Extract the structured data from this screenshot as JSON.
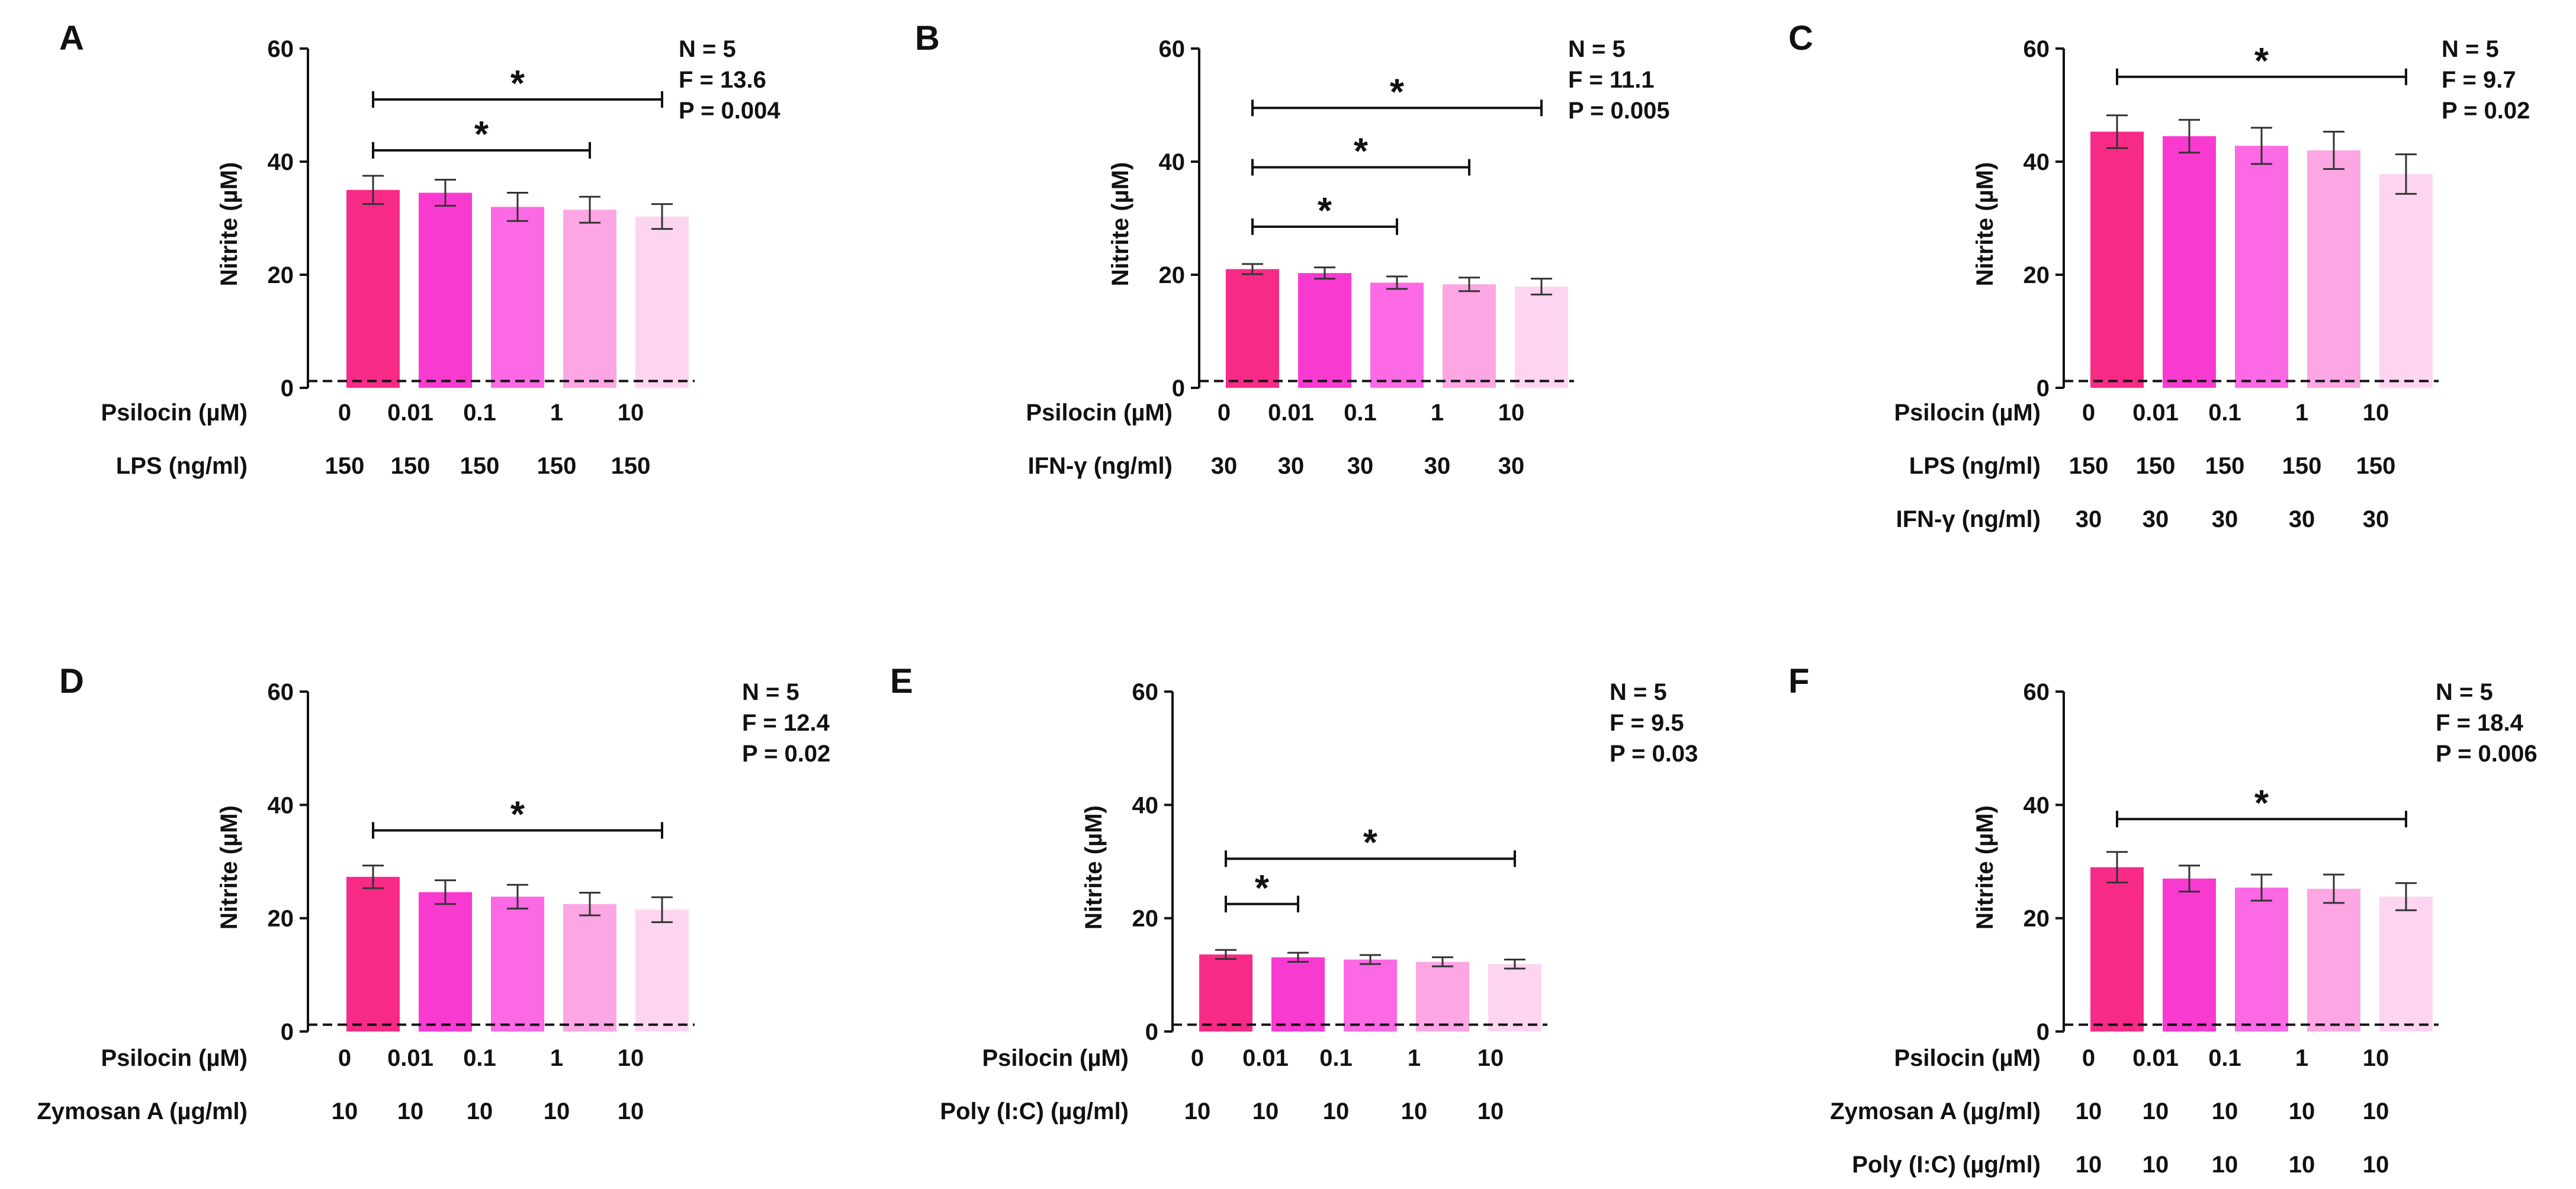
{
  "colors": [
    "#f72b86",
    "#f93ad0",
    "#fb6ae4",
    "#fca6e3",
    "#fdd5f1"
  ],
  "chart_data": [
    {
      "panel": "A",
      "type": "bar",
      "ylabel": "Nitrite (µM)",
      "ylim": [
        0,
        60
      ],
      "yticks": [
        "0",
        "20",
        "40",
        "60"
      ],
      "baseline_dashed": 1.2,
      "rows": [
        {
          "label": "Psilocin (µM)",
          "values": [
            "0",
            "0.01",
            "0.1",
            "1",
            "10"
          ]
        },
        {
          "label": "LPS (ng/ml)",
          "values": [
            "150",
            "150",
            "150",
            "150",
            "150"
          ]
        }
      ],
      "values": [
        35,
        34.5,
        32,
        31.5,
        30.3
      ],
      "errors": [
        2.5,
        2.3,
        2.5,
        2.3,
        2.2
      ],
      "stats": [
        "N = 5",
        "F = 13.6",
        "P = 0.004"
      ],
      "significance": [
        {
          "from": 0,
          "to": 4,
          "y": 51,
          "label": "*"
        },
        {
          "from": 0,
          "to": 3,
          "y": 42,
          "label": "*"
        }
      ]
    },
    {
      "panel": "B",
      "type": "bar",
      "ylabel": "Nitrite (µM)",
      "ylim": [
        0,
        60
      ],
      "yticks": [
        "0",
        "20",
        "40",
        "60"
      ],
      "baseline_dashed": 1.2,
      "rows": [
        {
          "label": "Psilocin (µM)",
          "values": [
            "0",
            "0.01",
            "0.1",
            "1",
            "10"
          ]
        },
        {
          "label": "IFN-γ (ng/ml)",
          "values": [
            "30",
            "30",
            "30",
            "30",
            "30"
          ]
        }
      ],
      "values": [
        21,
        20.3,
        18.6,
        18.3,
        17.9
      ],
      "errors": [
        0.9,
        1.0,
        1.1,
        1.2,
        1.4
      ],
      "stats": [
        "N = 5",
        "F = 11.1",
        "P = 0.005"
      ],
      "significance": [
        {
          "from": 0,
          "to": 4,
          "y": 49.5,
          "label": "*"
        },
        {
          "from": 0,
          "to": 3,
          "y": 39,
          "label": "*"
        },
        {
          "from": 0,
          "to": 2,
          "y": 28.5,
          "label": "*"
        }
      ]
    },
    {
      "panel": "C",
      "type": "bar",
      "ylabel": "Nitrite (µM)",
      "ylim": [
        0,
        60
      ],
      "yticks": [
        "0",
        "20",
        "40",
        "60"
      ],
      "baseline_dashed": 1.2,
      "rows": [
        {
          "label": "Psilocin (µM)",
          "values": [
            "0",
            "0.01",
            "0.1",
            "1",
            "10"
          ]
        },
        {
          "label": "LPS (ng/ml)",
          "values": [
            "150",
            "150",
            "150",
            "150",
            "150"
          ]
        },
        {
          "label": "IFN-γ (ng/ml)",
          "values": [
            "30",
            "30",
            "30",
            "30",
            "30"
          ]
        }
      ],
      "values": [
        45.3,
        44.5,
        42.8,
        42,
        37.8
      ],
      "errors": [
        2.9,
        2.9,
        3.2,
        3.3,
        3.5
      ],
      "stats": [
        "N = 5",
        "F = 9.7",
        "P = 0.02"
      ],
      "significance": [
        {
          "from": 0,
          "to": 4,
          "y": 55,
          "label": "*"
        }
      ]
    },
    {
      "panel": "D",
      "type": "bar",
      "ylabel": "Nitrite (µM)",
      "ylim": [
        0,
        60
      ],
      "yticks": [
        "0",
        "20",
        "40",
        "60"
      ],
      "baseline_dashed": 1.2,
      "rows": [
        {
          "label": "Psilocin (µM)",
          "values": [
            "0",
            "0.01",
            "0.1",
            "1",
            "10"
          ]
        },
        {
          "label": "Zymosan A (µg/ml)",
          "values": [
            "10",
            "10",
            "10",
            "10",
            "10"
          ]
        }
      ],
      "values": [
        27.3,
        24.6,
        23.8,
        22.5,
        21.5
      ],
      "errors": [
        2.0,
        2.1,
        2.1,
        2.0,
        2.2
      ],
      "stats": [
        "N = 5",
        "F = 12.4",
        "P = 0.02"
      ],
      "significance": [
        {
          "from": 0,
          "to": 4,
          "y": 35.5,
          "label": "*"
        }
      ]
    },
    {
      "panel": "E",
      "type": "bar",
      "ylabel": "Nitrite (µM)",
      "ylim": [
        0,
        60
      ],
      "yticks": [
        "0",
        "20",
        "40",
        "60"
      ],
      "baseline_dashed": 1.2,
      "rows": [
        {
          "label": "Psilocin (µM)",
          "values": [
            "0",
            "0.01",
            "0.1",
            "1",
            "10"
          ]
        },
        {
          "label": "Poly (I:C) (µg/ml)",
          "values": [
            "10",
            "10",
            "10",
            "10",
            "10"
          ]
        }
      ],
      "values": [
        13.6,
        13.1,
        12.7,
        12.3,
        11.9
      ],
      "errors": [
        0.8,
        0.8,
        0.8,
        0.8,
        0.8
      ],
      "stats": [
        "N = 5",
        "F = 9.5",
        "P = 0.03"
      ],
      "significance": [
        {
          "from": 0,
          "to": 4,
          "y": 30.5,
          "label": "*"
        },
        {
          "from": 0,
          "to": 1,
          "y": 22.5,
          "label": "*"
        }
      ]
    },
    {
      "panel": "F",
      "type": "bar",
      "ylabel": "Nitrite (µM)",
      "ylim": [
        0,
        60
      ],
      "yticks": [
        "0",
        "20",
        "40",
        "60"
      ],
      "baseline_dashed": 1.2,
      "rows": [
        {
          "label": "Psilocin (µM)",
          "values": [
            "0",
            "0.01",
            "0.1",
            "1",
            "10"
          ]
        },
        {
          "label": "Zymosan A (µg/ml)",
          "values": [
            "10",
            "10",
            "10",
            "10",
            "10"
          ]
        },
        {
          "label": "Poly (I:C) (µg/ml)",
          "values": [
            "10",
            "10",
            "10",
            "10",
            "10"
          ]
        }
      ],
      "values": [
        29,
        27,
        25.4,
        25.2,
        23.8
      ],
      "errors": [
        2.7,
        2.3,
        2.3,
        2.5,
        2.4
      ],
      "stats": [
        "N = 5",
        "F = 18.4",
        "P = 0.006"
      ],
      "significance": [
        {
          "from": 0,
          "to": 4,
          "y": 37.5,
          "label": "*"
        }
      ]
    }
  ]
}
